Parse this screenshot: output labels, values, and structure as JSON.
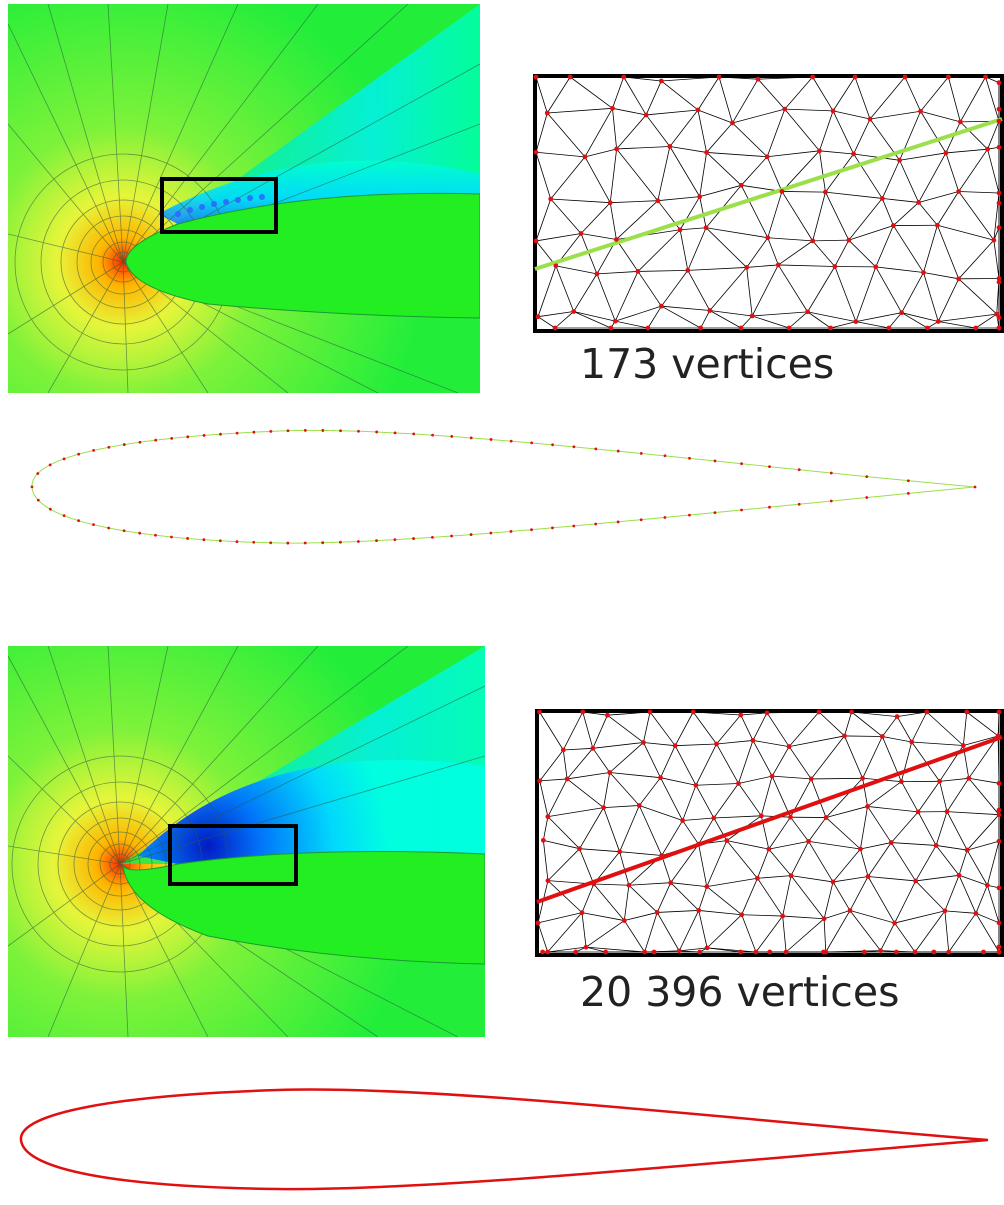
{
  "panels": [
    {
      "id": "coarse",
      "vertex_label": "173 vertices",
      "boundary_points": 90,
      "colors": {
        "boundary_line": "#9be04a",
        "vertex": "#e01010",
        "zoom_box": "#000000"
      }
    },
    {
      "id": "fine",
      "vertex_label": "20 396 vertices",
      "boundary_points": 0,
      "colors": {
        "boundary_line": "#e01010",
        "vertex": "#e01010",
        "zoom_box": "#000000"
      }
    }
  ],
  "colormap": [
    "#ff2a00",
    "#ffd400",
    "#dcff2a",
    "#2ef02e",
    "#00ff90",
    "#00ffff",
    "#0060ff",
    "#0000c8"
  ]
}
